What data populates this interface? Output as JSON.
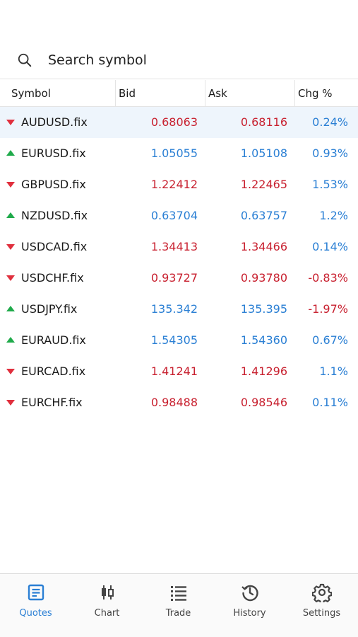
{
  "search": {
    "placeholder": "Search symbol"
  },
  "table": {
    "headers": {
      "symbol": "Symbol",
      "bid": "Bid",
      "ask": "Ask",
      "chg": "Chg %"
    },
    "rows": [
      {
        "symbol": "AUDUSD.fix",
        "bid": "0.68063",
        "ask": "0.68116",
        "chg": "0.24%",
        "direction": "down"
      },
      {
        "symbol": "EURUSD.fix",
        "bid": "1.05055",
        "ask": "1.05108",
        "chg": "0.93%",
        "direction": "up"
      },
      {
        "symbol": "GBPUSD.fix",
        "bid": "1.22412",
        "ask": "1.22465",
        "chg": "1.53%",
        "direction": "down"
      },
      {
        "symbol": "NZDUSD.fix",
        "bid": "0.63704",
        "ask": "0.63757",
        "chg": "1.2%",
        "direction": "up"
      },
      {
        "symbol": "USDCAD.fix",
        "bid": "1.34413",
        "ask": "1.34466",
        "chg": "0.14%",
        "direction": "down"
      },
      {
        "symbol": "USDCHF.fix",
        "bid": "0.93727",
        "ask": "0.93780",
        "chg": "-0.83%",
        "direction": "down"
      },
      {
        "symbol": "USDJPY.fix",
        "bid": "135.342",
        "ask": "135.395",
        "chg": "-1.97%",
        "direction": "up"
      },
      {
        "symbol": "EURAUD.fix",
        "bid": "1.54305",
        "ask": "1.54360",
        "chg": "0.67%",
        "direction": "up"
      },
      {
        "symbol": "EURCAD.fix",
        "bid": "1.41241",
        "ask": "1.41296",
        "chg": "1.1%",
        "direction": "down"
      },
      {
        "symbol": "EURCHF.fix",
        "bid": "0.98488",
        "ask": "0.98546",
        "chg": "0.11%",
        "direction": "down"
      }
    ]
  },
  "colors": {
    "down": "#c8202f",
    "up": "#2a7fd4",
    "positive_change": "#2a7fd4",
    "negative_change": "#c8202f",
    "accent": "#2a7fd4"
  },
  "tabbar": {
    "items": [
      {
        "label": "Quotes",
        "icon": "quotes-icon",
        "active": true
      },
      {
        "label": "Chart",
        "icon": "candlestick-chart-icon",
        "active": false
      },
      {
        "label": "Trade",
        "icon": "trade-list-icon",
        "active": false
      },
      {
        "label": "History",
        "icon": "history-icon",
        "active": false
      },
      {
        "label": "Settings",
        "icon": "gear-icon",
        "active": false
      }
    ]
  }
}
